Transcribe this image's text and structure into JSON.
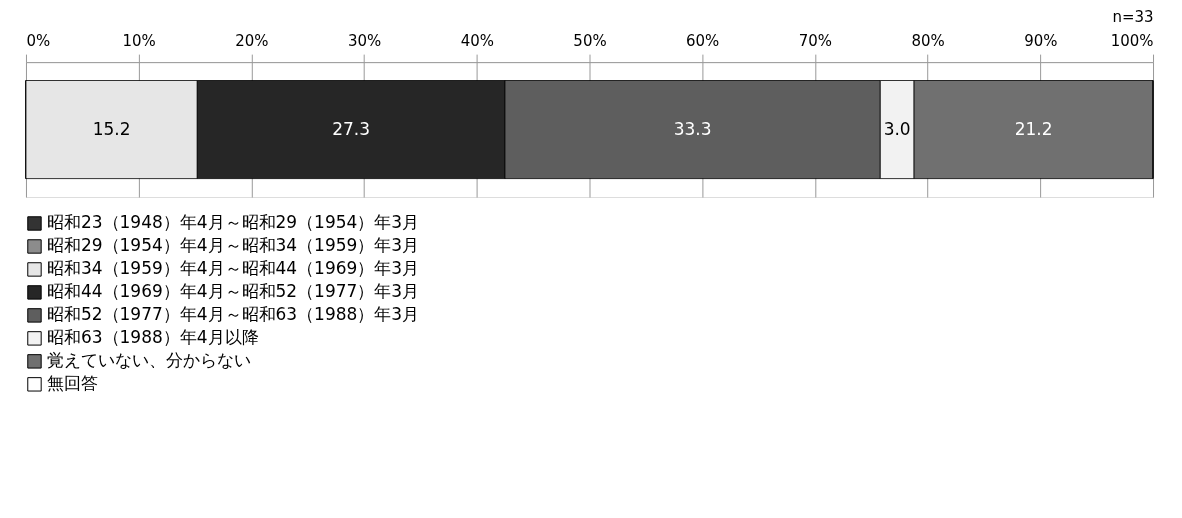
{
  "chart_data": {
    "type": "bar",
    "orientation": "horizontal",
    "stacked": true,
    "categories": [
      null
    ],
    "xlim": [
      0,
      100
    ],
    "xticks": [
      {
        "value": 0,
        "label": "0%"
      },
      {
        "value": 10,
        "label": "10%"
      },
      {
        "value": 20,
        "label": "20%"
      },
      {
        "value": 30,
        "label": "30%"
      },
      {
        "value": 40,
        "label": "40%"
      },
      {
        "value": 50,
        "label": "50%"
      },
      {
        "value": 60,
        "label": "60%"
      },
      {
        "value": 70,
        "label": "70%"
      },
      {
        "value": 80,
        "label": "80%"
      },
      {
        "value": 90,
        "label": "90%"
      },
      {
        "value": 100,
        "label": "100%"
      }
    ],
    "grid": "x",
    "legend": "bottom",
    "annotations": [
      "n=33"
    ],
    "series": [
      {
        "name": "昭和23（1948）年4月～昭和29（1954）年3月",
        "color": "#333333",
        "values": [
          0
        ],
        "value_labels": [
          null
        ]
      },
      {
        "name": "昭和29（1954）年4月～昭和34（1959）年3月",
        "color": "#8c8c8c",
        "values": [
          0
        ],
        "value_labels": [
          null
        ]
      },
      {
        "name": "昭和34（1959）年4月～昭和44（1969）年3月",
        "color": "#e6e6e6",
        "values": [
          15.2
        ],
        "value_labels": [
          "15.2"
        ]
      },
      {
        "name": "昭和44（1969）年4月～昭和52（1977）年3月",
        "color": "#262626",
        "values": [
          27.3
        ],
        "value_labels": [
          "27.3"
        ]
      },
      {
        "name": "昭和52（1977）年4月～昭和63（1988）年3月",
        "color": "#5e5e5e",
        "values": [
          33.3
        ],
        "value_labels": [
          "33.3"
        ]
      },
      {
        "name": "昭和63（1988）年4月以降",
        "color": "#f2f2f2",
        "values": [
          3.0
        ],
        "value_labels": [
          "3.0"
        ]
      },
      {
        "name": "覚えていない、分からない",
        "color": "#707070",
        "values": [
          21.2
        ],
        "value_labels": [
          "21.2"
        ]
      },
      {
        "name": "無回答",
        "color": "#ffffff",
        "values": [
          0
        ],
        "value_labels": [
          null
        ]
      }
    ]
  }
}
